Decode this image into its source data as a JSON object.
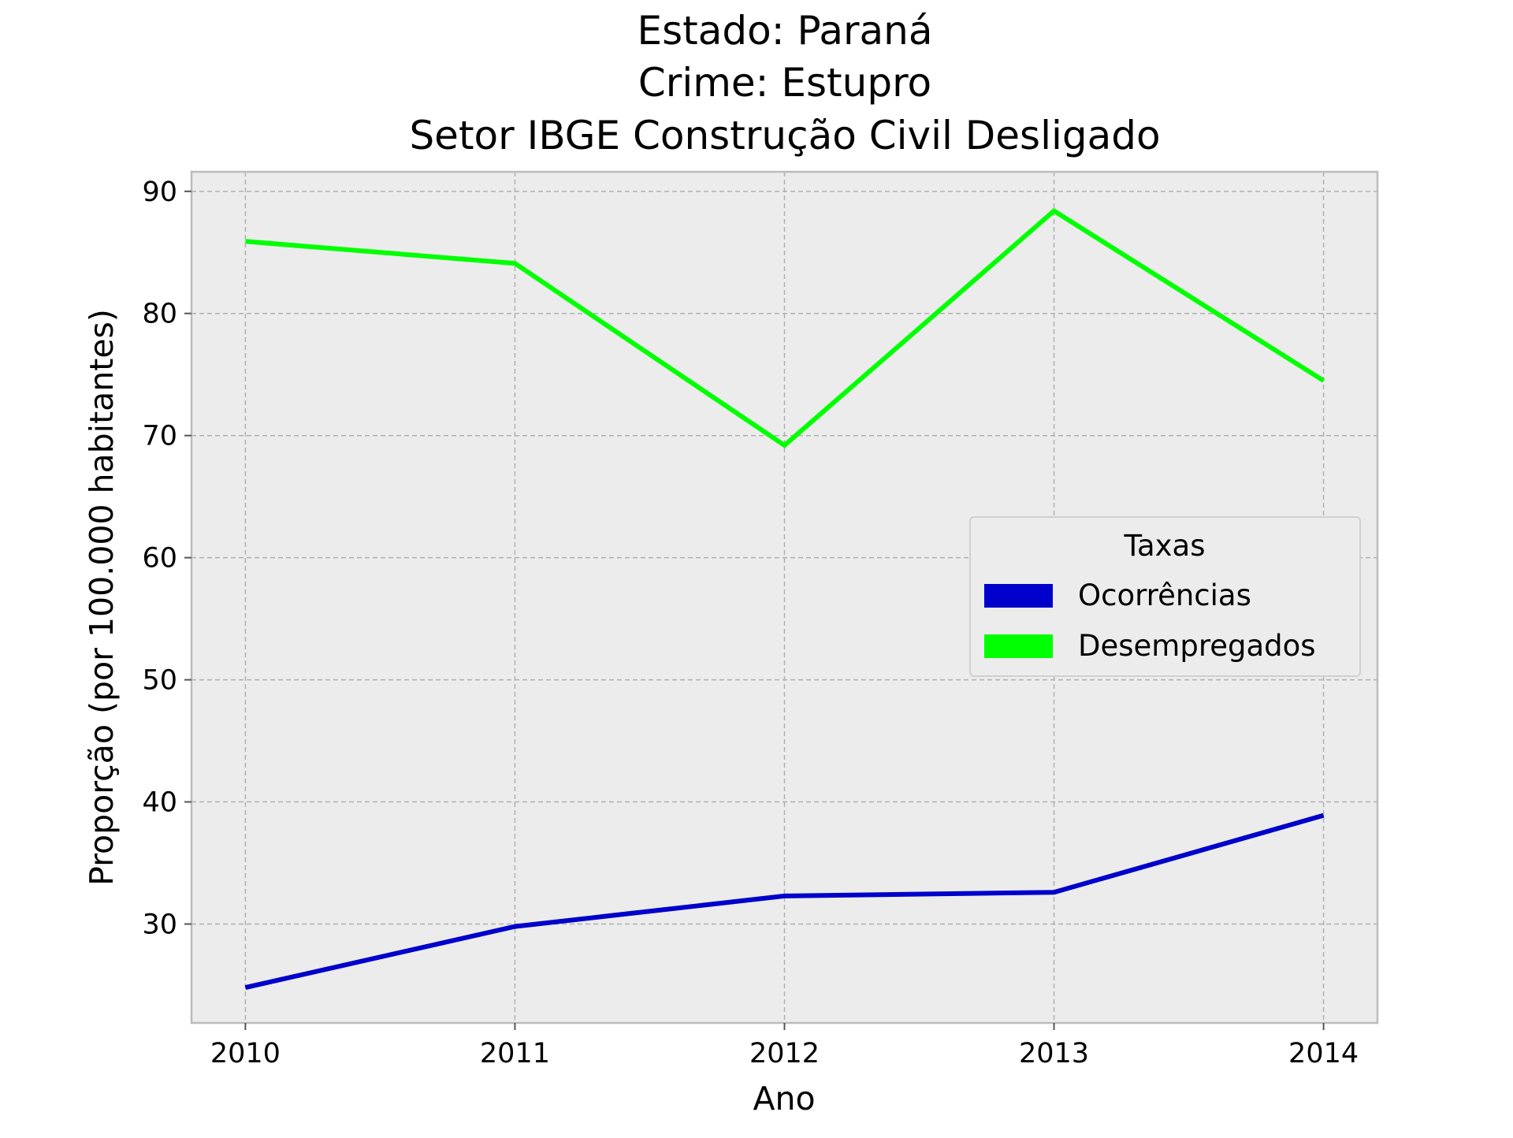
{
  "chart_data": {
    "type": "line",
    "title_lines": [
      "Estado: Paraná",
      "Crime: Estupro",
      "Setor IBGE  Construção Civil   Desligado"
    ],
    "xlabel": "Ano",
    "ylabel": "Proporção (por 100.000 habitantes)",
    "x": [
      2010,
      2011,
      2012,
      2013,
      2014
    ],
    "x_tick_labels": [
      "2010",
      "2011",
      "2012",
      "2013",
      "2014"
    ],
    "xlim": [
      2009.8,
      2014.2
    ],
    "y_ticks": [
      30,
      40,
      50,
      60,
      70,
      80,
      90
    ],
    "y_tick_labels": [
      "30",
      "40",
      "50",
      "60",
      "70",
      "80",
      "90"
    ],
    "ylim": [
      21.9,
      91.6
    ],
    "grid": true,
    "grid_style": "dashed",
    "plot_background": "#ececec",
    "legend": {
      "title": "Taxas",
      "placement": "center-right"
    },
    "series": [
      {
        "name": "Ocorrências",
        "color": "#0000cc",
        "values": [
          24.8,
          29.8,
          32.3,
          32.6,
          38.9
        ]
      },
      {
        "name": "Desempregados",
        "color": "#00ff00",
        "values": [
          85.9,
          84.1,
          69.2,
          88.4,
          74.5
        ]
      }
    ]
  }
}
